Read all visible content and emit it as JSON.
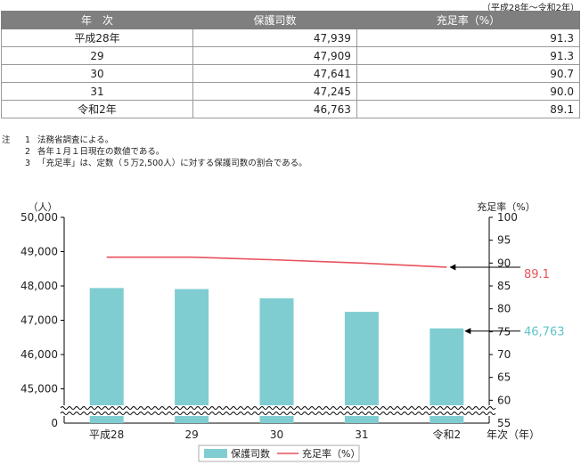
{
  "table": {
    "range_note": "（平成28年～令和2年）",
    "headers": [
      "年　次",
      "保護司数",
      "充足率（%）"
    ],
    "rows": [
      {
        "year": "平成28年",
        "count": "47,939",
        "rate": "91.3"
      },
      {
        "year": "29",
        "count": "47,909",
        "rate": "91.3"
      },
      {
        "year": "30",
        "count": "47,641",
        "rate": "90.7"
      },
      {
        "year": "31",
        "count": "47,245",
        "rate": "90.0"
      },
      {
        "year": "令和2年",
        "count": "46,763",
        "rate": "89.1"
      }
    ]
  },
  "notes": {
    "prefix": "注",
    "items": [
      {
        "no": "1",
        "text": "法務省調査による。"
      },
      {
        "no": "2",
        "text": "各年１月１日現在の数値である。"
      },
      {
        "no": "3",
        "text": "「充足率」は、定数（５万2,500人）に対する保護司数の割合である。"
      }
    ]
  },
  "chart_data": {
    "type": "bar+line",
    "categories": [
      "平成28",
      "29",
      "30",
      "31",
      "令和2"
    ],
    "series": [
      {
        "name": "保護司数",
        "type": "bar",
        "axis": "left",
        "color": "#7fcdd1",
        "values": [
          47939,
          47909,
          47641,
          47245,
          46763
        ]
      },
      {
        "name": "充足率（%）",
        "type": "line",
        "axis": "right",
        "color": "#e8525b",
        "values": [
          91.3,
          91.3,
          90.7,
          90.0,
          89.1
        ]
      }
    ],
    "left_axis": {
      "unit": "（人）",
      "ticks": [
        "50,000",
        "49,000",
        "48,000",
        "47,000",
        "46,000",
        "45,000",
        "0"
      ],
      "ylim": [
        44000,
        50000
      ],
      "broken": true
    },
    "right_axis": {
      "unit": "充足率（%）",
      "ticks": [
        "100",
        "95",
        "90",
        "85",
        "80",
        "75",
        "70",
        "65",
        "60",
        "55"
      ],
      "ylim": [
        55,
        100
      ],
      "broken": true
    },
    "x_unit": "年次（年）",
    "annotations": [
      {
        "text": "89.1",
        "series": "充足率（%）",
        "color": "#e8525b"
      },
      {
        "text": "46,763",
        "series": "保護司数",
        "color": "#5fc4cb"
      }
    ],
    "legend": {
      "position": "bottom-center",
      "items": [
        "保護司数",
        "充足率（%）"
      ]
    }
  }
}
